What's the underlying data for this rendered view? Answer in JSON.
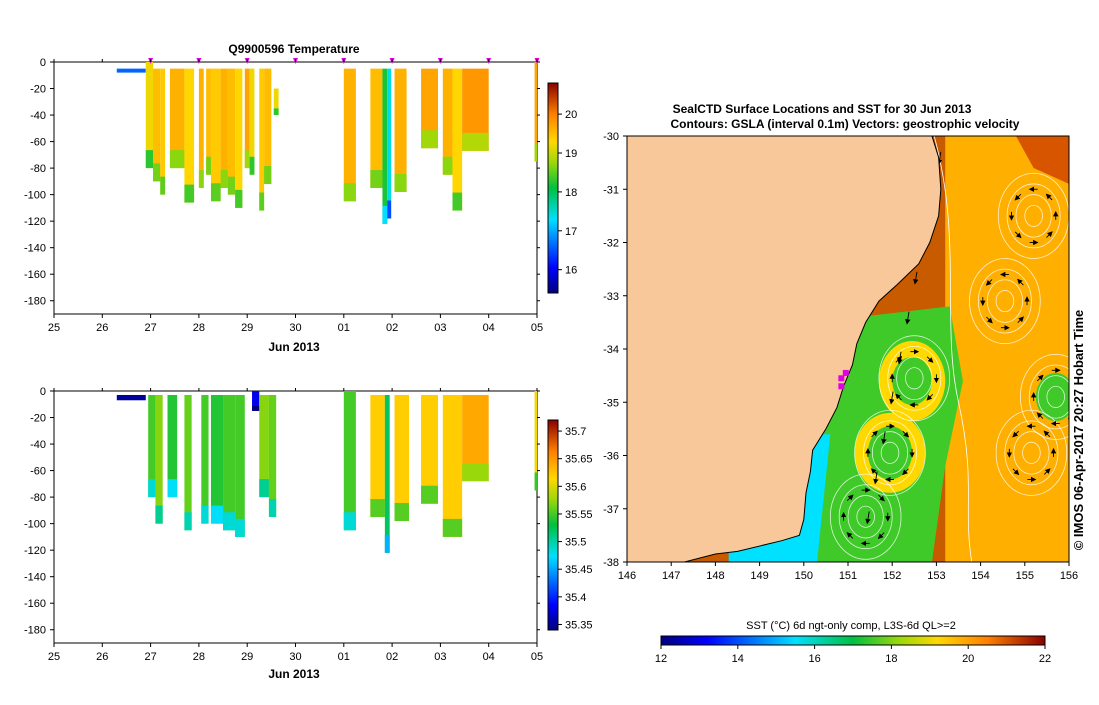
{
  "colors": {
    "land": "#f9c89a",
    "frame": "#000000",
    "marker": "#e000e0",
    "contour": "#ffffff",
    "vector": "#000000"
  },
  "chart_data": [
    {
      "id": "temperature-profiles",
      "type": "heatmap",
      "title": "Q9900596  Temperature",
      "xlabel": "Jun 2013",
      "ylabel": "",
      "x_ticks": [
        "25",
        "26",
        "27",
        "28",
        "29",
        "30",
        "01",
        "02",
        "03",
        "04",
        "05"
      ],
      "xlim": [
        25,
        35
      ],
      "y_ticks": [
        "0",
        "-20",
        "-40",
        "-60",
        "-80",
        "-100",
        "-120",
        "-140",
        "-160",
        "-180"
      ],
      "ylim": [
        -190,
        0
      ],
      "colorbar": {
        "ticks": [
          "16",
          "17",
          "18",
          "19",
          "20"
        ],
        "range": [
          15.4,
          20.8
        ]
      },
      "markers_x": [
        27,
        28,
        29,
        30,
        31,
        32,
        33,
        34,
        35
      ],
      "profiles": [
        {
          "x0": 26.3,
          "x1": 26.9,
          "top": -5,
          "bottom": -8,
          "value": 16.6
        },
        {
          "x0": 26.9,
          "x1": 27.05,
          "top": 0,
          "bottom": -80,
          "value": 19.2
        },
        {
          "x0": 27.05,
          "x1": 27.2,
          "top": -5,
          "bottom": -90,
          "value": 19.5
        },
        {
          "x0": 27.2,
          "x1": 27.3,
          "top": -5,
          "bottom": -100,
          "value": 19.4
        },
        {
          "x0": 27.4,
          "x1": 27.7,
          "top": -5,
          "bottom": -80,
          "value": 19.6
        },
        {
          "x0": 27.7,
          "x1": 27.9,
          "top": -5,
          "bottom": -106,
          "value": 19.3
        },
        {
          "x0": 28.0,
          "x1": 28.1,
          "top": -5,
          "bottom": -95,
          "value": 19.6
        },
        {
          "x0": 28.15,
          "x1": 28.25,
          "top": -5,
          "bottom": -85,
          "value": 19.5
        },
        {
          "x0": 28.25,
          "x1": 28.45,
          "top": -5,
          "bottom": -105,
          "value": 19.4
        },
        {
          "x0": 28.45,
          "x1": 28.6,
          "top": -5,
          "bottom": -95,
          "value": 19.6
        },
        {
          "x0": 28.6,
          "x1": 28.75,
          "top": -5,
          "bottom": -100,
          "value": 19.5
        },
        {
          "x0": 28.75,
          "x1": 28.9,
          "top": -5,
          "bottom": -110,
          "value": 19.3
        },
        {
          "x0": 28.95,
          "x1": 29.05,
          "top": -5,
          "bottom": -80,
          "value": 19.7
        },
        {
          "x0": 29.05,
          "x1": 29.15,
          "top": -5,
          "bottom": -85,
          "value": 19.2
        },
        {
          "x0": 29.25,
          "x1": 29.35,
          "top": -5,
          "bottom": -112,
          "value": 19.4
        },
        {
          "x0": 29.35,
          "x1": 29.5,
          "top": -5,
          "bottom": -92,
          "value": 19.5
        },
        {
          "x0": 29.55,
          "x1": 29.65,
          "top": -20,
          "bottom": -40,
          "value": 19.2
        },
        {
          "x0": 31.0,
          "x1": 31.25,
          "top": -5,
          "bottom": -105,
          "value": 19.6
        },
        {
          "x0": 31.55,
          "x1": 31.8,
          "top": -5,
          "bottom": -95,
          "value": 19.5
        },
        {
          "x0": 31.8,
          "x1": 31.9,
          "top": -5,
          "bottom": -122,
          "value": 18.2
        },
        {
          "x0": 31.9,
          "x1": 31.98,
          "top": -5,
          "bottom": -118,
          "value": 17.4
        },
        {
          "x0": 32.05,
          "x1": 32.3,
          "top": -5,
          "bottom": -98,
          "value": 19.6
        },
        {
          "x0": 32.6,
          "x1": 32.95,
          "top": -5,
          "bottom": -65,
          "value": 19.7
        },
        {
          "x0": 33.05,
          "x1": 33.25,
          "top": -5,
          "bottom": -85,
          "value": 19.6
        },
        {
          "x0": 33.25,
          "x1": 33.45,
          "top": -5,
          "bottom": -112,
          "value": 19.3
        },
        {
          "x0": 33.45,
          "x1": 34.0,
          "top": -5,
          "bottom": -67,
          "value": 19.8
        },
        {
          "x0": 34.95,
          "x1": 35.05,
          "top": 0,
          "bottom": -75,
          "value": 19.7
        }
      ]
    },
    {
      "id": "salinity-profiles",
      "type": "heatmap",
      "title": "",
      "xlabel": "Jun 2013",
      "ylabel": "",
      "x_ticks": [
        "25",
        "26",
        "27",
        "28",
        "29",
        "30",
        "01",
        "02",
        "03",
        "04",
        "05"
      ],
      "xlim": [
        25,
        35
      ],
      "y_ticks": [
        "0",
        "-20",
        "-40",
        "-60",
        "-80",
        "-100",
        "-120",
        "-140",
        "-160",
        "-180"
      ],
      "ylim": [
        -190,
        0
      ],
      "colorbar": {
        "ticks": [
          "35.35",
          "35.4",
          "35.45",
          "35.5",
          "35.55",
          "35.6",
          "35.65",
          "35.7"
        ],
        "range": [
          35.34,
          35.72
        ]
      },
      "profiles": [
        {
          "x0": 26.3,
          "x1": 26.9,
          "top": -3,
          "bottom": -7,
          "value": 35.35
        },
        {
          "x0": 26.95,
          "x1": 27.1,
          "top": -3,
          "bottom": -80,
          "value": 35.55
        },
        {
          "x0": 27.1,
          "x1": 27.25,
          "top": -3,
          "bottom": -100,
          "value": 35.57
        },
        {
          "x0": 27.35,
          "x1": 27.55,
          "top": -3,
          "bottom": -80,
          "value": 35.54
        },
        {
          "x0": 27.7,
          "x1": 27.85,
          "top": -3,
          "bottom": -105,
          "value": 35.56
        },
        {
          "x0": 28.05,
          "x1": 28.2,
          "top": -3,
          "bottom": -100,
          "value": 35.55
        },
        {
          "x0": 28.25,
          "x1": 28.5,
          "top": -3,
          "bottom": -100,
          "value": 35.54
        },
        {
          "x0": 28.5,
          "x1": 28.75,
          "top": -3,
          "bottom": -105,
          "value": 35.55
        },
        {
          "x0": 28.75,
          "x1": 28.95,
          "top": -3,
          "bottom": -110,
          "value": 35.55
        },
        {
          "x0": 29.1,
          "x1": 29.25,
          "top": 0,
          "bottom": -15,
          "value": 35.38
        },
        {
          "x0": 29.25,
          "x1": 29.45,
          "top": -3,
          "bottom": -80,
          "value": 35.57
        },
        {
          "x0": 29.45,
          "x1": 29.6,
          "top": -3,
          "bottom": -95,
          "value": 35.56
        },
        {
          "x0": 31.0,
          "x1": 31.25,
          "top": 0,
          "bottom": -105,
          "value": 35.55
        },
        {
          "x0": 31.55,
          "x1": 31.85,
          "top": -3,
          "bottom": -95,
          "value": 35.62
        },
        {
          "x0": 31.85,
          "x1": 31.95,
          "top": -3,
          "bottom": -122,
          "value": 35.52
        },
        {
          "x0": 32.05,
          "x1": 32.35,
          "top": -3,
          "bottom": -98,
          "value": 35.62
        },
        {
          "x0": 32.6,
          "x1": 32.95,
          "top": -3,
          "bottom": -85,
          "value": 35.62
        },
        {
          "x0": 33.05,
          "x1": 33.45,
          "top": -3,
          "bottom": -110,
          "value": 35.62
        },
        {
          "x0": 33.45,
          "x1": 34.0,
          "top": -3,
          "bottom": -68,
          "value": 35.64
        },
        {
          "x0": 34.95,
          "x1": 35.05,
          "top": 0,
          "bottom": -75,
          "value": 35.61
        }
      ]
    },
    {
      "id": "sst-map",
      "type": "heatmap",
      "title": "SealCTD Surface Locations and SST for 30 Jun 2013",
      "subtitle": "Contours: GSLA (interval 0.1m) Vectors: geostrophic velocity",
      "xlabel": "",
      "ylabel": "",
      "x_ticks": [
        "146",
        "147",
        "148",
        "149",
        "150",
        "151",
        "152",
        "153",
        "154",
        "155",
        "156"
      ],
      "xlim": [
        146,
        156
      ],
      "y_ticks": [
        "-30",
        "-31",
        "-32",
        "-33",
        "-34",
        "-35",
        "-36",
        "-37",
        "-38"
      ],
      "ylim": [
        -38,
        -30
      ],
      "side_label": "© IMOS 06-Apr-2017 20:27 Hobart Time",
      "colorbar": {
        "label": "SST (°C) 6d ngt-only comp, L3S-6d QL>=2",
        "ticks": [
          "12",
          "14",
          "16",
          "18",
          "20",
          "22"
        ],
        "range": [
          12,
          22
        ]
      },
      "coast": [
        [
          156,
          -30
        ],
        [
          152.9,
          -30
        ],
        [
          153.05,
          -30.4
        ],
        [
          153.1,
          -31
        ],
        [
          153.05,
          -31.5
        ],
        [
          152.85,
          -32
        ],
        [
          152.6,
          -32.4
        ],
        [
          152.1,
          -32.8
        ],
        [
          151.7,
          -33.1
        ],
        [
          151.4,
          -33.5
        ],
        [
          151.2,
          -33.9
        ],
        [
          151.1,
          -34.3
        ],
        [
          150.9,
          -34.7
        ],
        [
          150.75,
          -35.1
        ],
        [
          150.5,
          -35.5
        ],
        [
          150.2,
          -35.9
        ],
        [
          150.15,
          -36.3
        ],
        [
          150.05,
          -36.7
        ],
        [
          150.0,
          -37.2
        ],
        [
          149.9,
          -37.5
        ],
        [
          149.5,
          -37.6
        ],
        [
          148.5,
          -37.8
        ],
        [
          148.0,
          -37.85
        ],
        [
          147.3,
          -38.0
        ]
      ],
      "sst_zones": [
        {
          "name": "warm-east",
          "value": 19.8
        },
        {
          "name": "hot-northeast",
          "value": 21.0
        },
        {
          "name": "eddy-rim",
          "value": 19.2
        },
        {
          "name": "cool-eddies",
          "value": 17.5
        },
        {
          "name": "coastal-cold",
          "value": 15.5
        }
      ],
      "seal_locations": [
        [
          150.95,
          -34.45
        ],
        [
          150.85,
          -34.55
        ],
        [
          150.85,
          -34.7
        ]
      ],
      "eddies": [
        {
          "lon": 152.5,
          "lat": -34.55,
          "sense": "cw"
        },
        {
          "lon": 151.95,
          "lat": -35.95,
          "sense": "cw"
        },
        {
          "lon": 151.4,
          "lat": -37.15,
          "sense": "cw"
        },
        {
          "lon": 154.55,
          "lat": -33.1,
          "sense": "ccw"
        },
        {
          "lon": 155.2,
          "lat": -31.5,
          "sense": "ccw"
        },
        {
          "lon": 155.15,
          "lat": -35.95,
          "sense": "ccw"
        },
        {
          "lon": 155.7,
          "lat": -34.9,
          "sense": "cw"
        }
      ]
    }
  ]
}
